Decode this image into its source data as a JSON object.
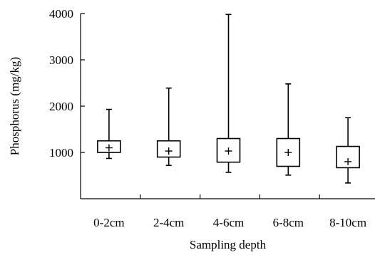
{
  "chart_data": {
    "type": "boxplot",
    "xlabel": "Sampling depth",
    "ylabel": "Phosphorus (mg/kg)",
    "ylim": [
      0,
      4000
    ],
    "y_ticks": [
      1000,
      2000,
      3000,
      4000
    ],
    "categories": [
      "0-2cm",
      "2-4cm",
      "4-6cm",
      "6-8cm",
      "8-10cm"
    ],
    "boxes": [
      {
        "category": "0-2cm",
        "min": 870,
        "q1": 1000,
        "q3": 1250,
        "max": 1930,
        "mean": 1100
      },
      {
        "category": "2-4cm",
        "min": 720,
        "q1": 900,
        "q3": 1250,
        "max": 2390,
        "mean": 1030
      },
      {
        "category": "4-6cm",
        "min": 570,
        "q1": 790,
        "q3": 1300,
        "max": 3980,
        "mean": 1030
      },
      {
        "category": "6-8cm",
        "min": 510,
        "q1": 700,
        "q3": 1300,
        "max": 2480,
        "mean": 1000
      },
      {
        "category": "8-10cm",
        "min": 340,
        "q1": 670,
        "q3": 1130,
        "max": 1750,
        "mean": 800
      }
    ]
  }
}
